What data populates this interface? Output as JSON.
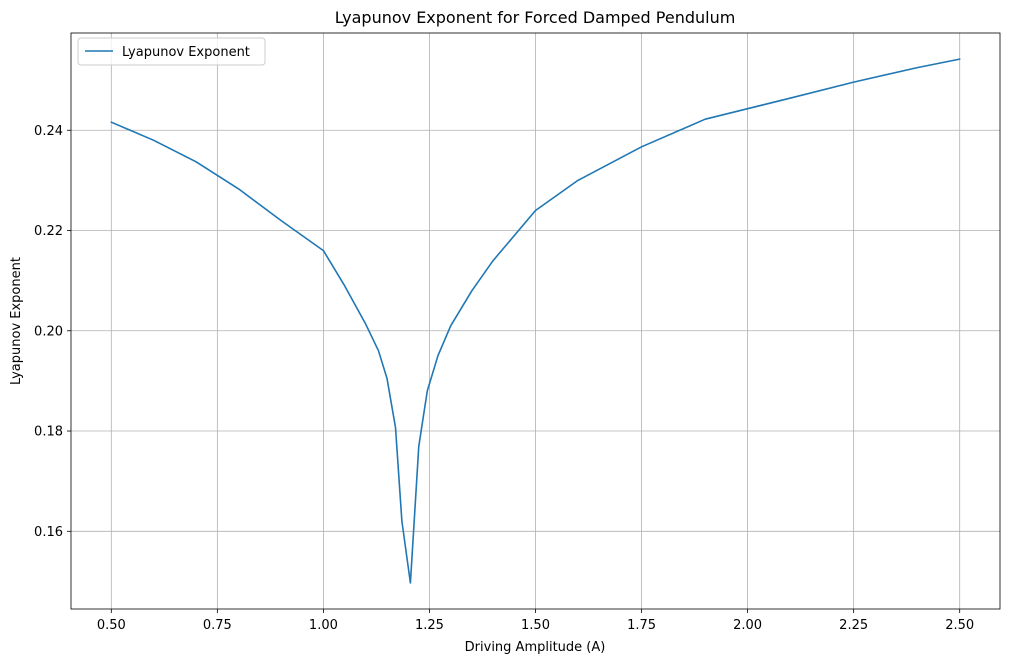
{
  "chart_data": {
    "type": "line",
    "title": "Lyapunov Exponent for Forced Damped Pendulum",
    "xlabel": "Driving Amplitude (A)",
    "ylabel": "Lyapunov Exponent",
    "xlim": [
      0.405,
      2.595
    ],
    "ylim": [
      0.1445,
      0.2594
    ],
    "x_ticks": [
      0.5,
      0.75,
      1.0,
      1.25,
      1.5,
      1.75,
      2.0,
      2.25,
      2.5
    ],
    "x_tick_labels": [
      "0.50",
      "0.75",
      "1.00",
      "1.25",
      "1.50",
      "1.75",
      "2.00",
      "2.25",
      "2.50"
    ],
    "y_ticks": [
      0.16,
      0.18,
      0.2,
      0.22,
      0.24
    ],
    "y_tick_labels": [
      "0.16",
      "0.18",
      "0.20",
      "0.22",
      "0.24"
    ],
    "grid": true,
    "legend_position": "upper-left",
    "series": [
      {
        "name": "Lyapunov Exponent",
        "color": "#1f77b4",
        "x": [
          0.5,
          0.6,
          0.7,
          0.8,
          0.9,
          1.0,
          1.05,
          1.1,
          1.13,
          1.15,
          1.17,
          1.185,
          1.205,
          1.225,
          1.245,
          1.27,
          1.3,
          1.35,
          1.4,
          1.5,
          1.6,
          1.75,
          1.9,
          2.0,
          2.1,
          2.25,
          2.4,
          2.5
        ],
        "y": [
          0.2416,
          0.238,
          0.2337,
          0.2283,
          0.222,
          0.216,
          0.209,
          0.2013,
          0.196,
          0.1905,
          0.1807,
          0.162,
          0.1497,
          0.177,
          0.188,
          0.195,
          0.201,
          0.208,
          0.214,
          0.224,
          0.23,
          0.2367,
          0.2422,
          0.2443,
          0.2464,
          0.2496,
          0.2525,
          0.2542
        ]
      }
    ]
  }
}
